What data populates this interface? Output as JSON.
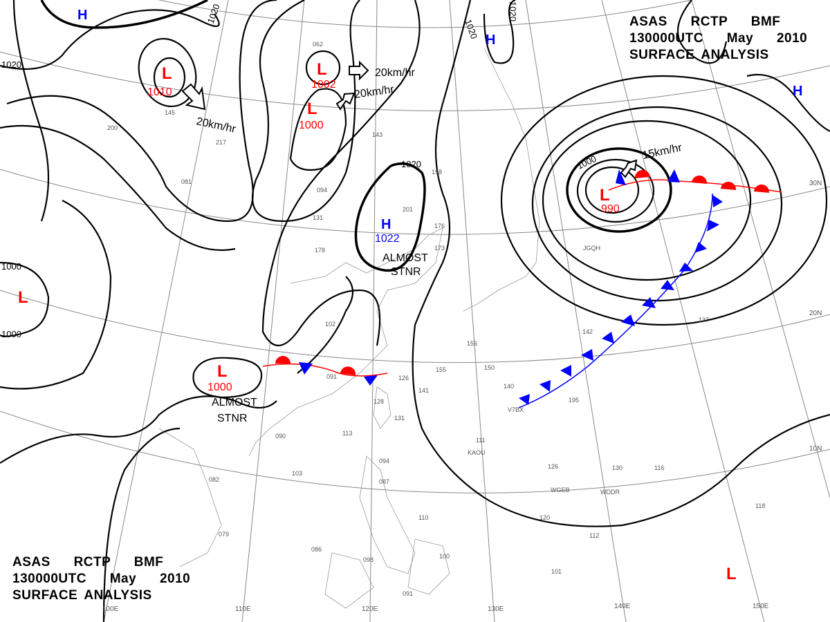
{
  "title_top": {
    "line1": "ASAS RCTP BMF",
    "line2": "130000UTC May 2010",
    "line3": "SURFACE ANALYSIS"
  },
  "title_bottom": {
    "line1": "ASAS RCTP BMF",
    "line2": "130000UTC May 2010",
    "line3": "SURFACE ANALYSIS"
  },
  "colors": {
    "low": "#ff0000",
    "high": "#0000ff",
    "isobar": "#000000",
    "grid": "#888888",
    "cold_front": "#0000ff",
    "warm_front": "#ff0000"
  },
  "pressure_centers": [
    {
      "type": "L",
      "value": "1010"
    },
    {
      "type": "L",
      "value": "1002"
    },
    {
      "type": "L",
      "value": "1000"
    },
    {
      "type": "L",
      "value": "990"
    },
    {
      "type": "L",
      "value": "1000"
    },
    {
      "type": "H",
      "value": "1022"
    },
    {
      "type": "L",
      "value": ""
    },
    {
      "type": "L",
      "value": ""
    },
    {
      "type": "H",
      "value": ""
    },
    {
      "type": "H",
      "value": ""
    },
    {
      "type": "H",
      "value": ""
    }
  ],
  "motion_labels": [
    "20km/hr",
    "20km/hr",
    "20km/hr",
    "15km/hr"
  ],
  "stationary_labels": [
    {
      "line1": "ALMOST",
      "line2": "STNR"
    },
    {
      "line1": "ALMOST",
      "line2": "STNR"
    }
  ],
  "isobar_labels": [
    "1020",
    "1020",
    "1020",
    "1020",
    "1000",
    "1000",
    "1000",
    "1020"
  ],
  "longitude_labels": [
    "100E",
    "110E",
    "120E",
    "130E",
    "140E",
    "150E"
  ],
  "latitude_labels": [
    "30N",
    "20N",
    "10N"
  ],
  "station_samples": [
    "062",
    "143",
    "145",
    "217",
    "200",
    "081",
    "094",
    "131",
    "178",
    "198",
    "201",
    "176",
    "173",
    "126",
    "091",
    "102",
    "156",
    "150",
    "140",
    "195",
    "142",
    "137",
    "113",
    "090",
    "103",
    "082",
    "079",
    "086",
    "098",
    "091",
    "110",
    "100",
    "101",
    "112",
    "120",
    "126",
    "130",
    "116",
    "118",
    "094",
    "087",
    "111",
    "128",
    "131",
    "141",
    "155",
    "JGQH",
    "KAOU",
    "WGEB",
    "V7BX",
    "WDDR"
  ]
}
